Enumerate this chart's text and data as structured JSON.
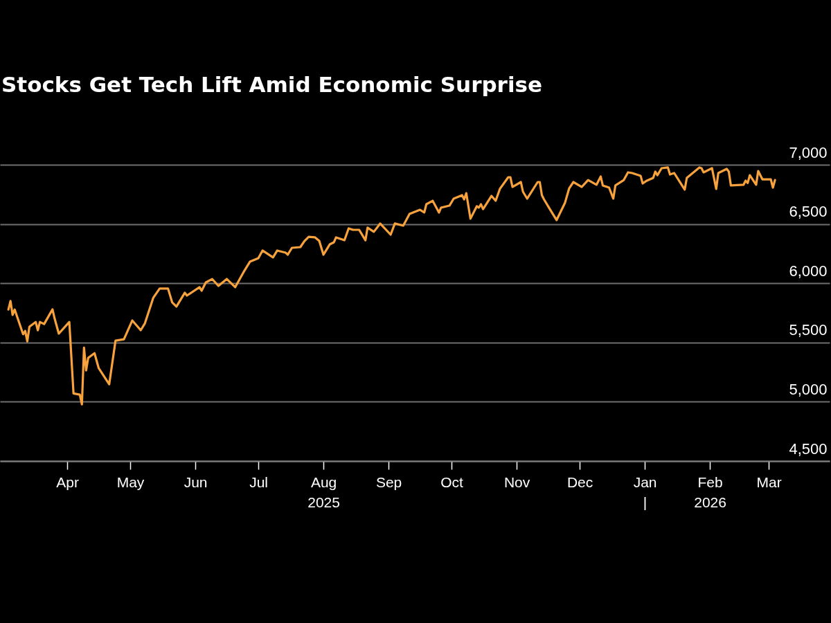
{
  "chart_data": {
    "type": "line",
    "title": "Stocks Get Tech Lift Amid Economic Surprise",
    "x": [
      "2025-03-04",
      "2025-03-05",
      "2025-03-06",
      "2025-03-07",
      "2025-03-11",
      "2025-03-12",
      "2025-03-13",
      "2025-03-14",
      "2025-03-17",
      "2025-03-18",
      "2025-03-19",
      "2025-03-21",
      "2025-03-25",
      "2025-03-26",
      "2025-03-28",
      "2025-04-02",
      "2025-04-04",
      "2025-04-07",
      "2025-04-08",
      "2025-04-09",
      "2025-04-10",
      "2025-04-11",
      "2025-04-14",
      "2025-04-16",
      "2025-04-21",
      "2025-04-24",
      "2025-04-28",
      "2025-05-02",
      "2025-05-06",
      "2025-05-08",
      "2025-05-12",
      "2025-05-15",
      "2025-05-19",
      "2025-05-21",
      "2025-05-23",
      "2025-05-27",
      "2025-05-28",
      "2025-06-03",
      "2025-06-04",
      "2025-06-06",
      "2025-06-09",
      "2025-06-12",
      "2025-06-16",
      "2025-06-20",
      "2025-06-24",
      "2025-06-27",
      "2025-07-01",
      "2025-07-03",
      "2025-07-08",
      "2025-07-10",
      "2025-07-14",
      "2025-07-15",
      "2025-07-17",
      "2025-07-21",
      "2025-07-23",
      "2025-07-25",
      "2025-07-28",
      "2025-07-30",
      "2025-08-01",
      "2025-08-04",
      "2025-08-06",
      "2025-08-07",
      "2025-08-11",
      "2025-08-13",
      "2025-08-15",
      "2025-08-18",
      "2025-08-21",
      "2025-08-22",
      "2025-08-25",
      "2025-08-28",
      "2025-09-02",
      "2025-09-04",
      "2025-09-08",
      "2025-09-11",
      "2025-09-16",
      "2025-09-18",
      "2025-09-19",
      "2025-09-22",
      "2025-09-25",
      "2025-09-26",
      "2025-09-30",
      "2025-10-02",
      "2025-10-06",
      "2025-10-07",
      "2025-10-08",
      "2025-10-10",
      "2025-10-13",
      "2025-10-14",
      "2025-10-15",
      "2025-10-16",
      "2025-10-20",
      "2025-10-22",
      "2025-10-24",
      "2025-10-28",
      "2025-10-29",
      "2025-10-30",
      "2025-11-03",
      "2025-11-04",
      "2025-11-06",
      "2025-11-11",
      "2025-11-12",
      "2025-11-13",
      "2025-11-14",
      "2025-11-17",
      "2025-11-20",
      "2025-11-24",
      "2025-11-26",
      "2025-11-28",
      "2025-12-02",
      "2025-12-05",
      "2025-12-09",
      "2025-12-11",
      "2025-12-12",
      "2025-12-15",
      "2025-12-17",
      "2025-12-18",
      "2025-12-22",
      "2025-12-24",
      "2025-12-26",
      "2025-12-30",
      "2025-12-31",
      "2026-01-02",
      "2026-01-05",
      "2026-01-06",
      "2026-01-07",
      "2026-01-09",
      "2026-01-12",
      "2026-01-13",
      "2026-01-15",
      "2026-01-20",
      "2026-01-21",
      "2026-01-23",
      "2026-01-27",
      "2026-01-28",
      "2026-01-29",
      "2026-02-02",
      "2026-02-04",
      "2026-02-05",
      "2026-02-09",
      "2026-02-10",
      "2026-02-11",
      "2026-02-17",
      "2026-02-18",
      "2026-02-19",
      "2026-02-20",
      "2026-02-23",
      "2026-02-24",
      "2026-02-26",
      "2026-03-02",
      "2026-03-03",
      "2026-03-04"
    ],
    "series": [
      {
        "color": "#f7a23c",
        "values": [
          5778,
          5850,
          5733,
          5778,
          5570,
          5598,
          5510,
          5633,
          5673,
          5604,
          5673,
          5656,
          5780,
          5703,
          5575,
          5673,
          5070,
          5060,
          4978,
          5457,
          5265,
          5370,
          5410,
          5283,
          5148,
          5516,
          5527,
          5686,
          5604,
          5662,
          5878,
          5955,
          5955,
          5838,
          5803,
          5920,
          5896,
          5967,
          5937,
          6007,
          6036,
          5978,
          6036,
          5967,
          6095,
          6182,
          6212,
          6276,
          6218,
          6276,
          6258,
          6241,
          6299,
          6305,
          6357,
          6392,
          6387,
          6357,
          6241,
          6328,
          6346,
          6387,
          6363,
          6463,
          6451,
          6451,
          6363,
          6469,
          6434,
          6504,
          6410,
          6504,
          6486,
          6585,
          6620,
          6597,
          6667,
          6696,
          6597,
          6638,
          6655,
          6714,
          6743,
          6708,
          6760,
          6545,
          6650,
          6638,
          6667,
          6626,
          6737,
          6696,
          6796,
          6895,
          6895,
          6813,
          6854,
          6772,
          6714,
          6854,
          6854,
          6743,
          6708,
          6620,
          6533,
          6679,
          6801,
          6854,
          6813,
          6871,
          6831,
          6901,
          6825,
          6807,
          6714,
          6825,
          6871,
          6936,
          6930,
          6907,
          6842,
          6866,
          6889,
          6942,
          6912,
          6971,
          6977,
          6918,
          6930,
          6790,
          6889,
          6918,
          6977,
          6971,
          6936,
          6971,
          6796,
          6930,
          6965,
          6942,
          6825,
          6831,
          6866,
          6846,
          6912,
          6831,
          6947,
          6877,
          6877,
          6807,
          6871
        ]
      }
    ],
    "xlim": [
      "2025-02-28",
      "2026-03-30"
    ],
    "xticks": [
      {
        "value": "2025-04-01",
        "label": "Apr"
      },
      {
        "value": "2025-05-01",
        "label": "May"
      },
      {
        "value": "2025-06-01",
        "label": "Jun"
      },
      {
        "value": "2025-07-01",
        "label": "Jul"
      },
      {
        "value": "2025-08-01",
        "label": "Aug\n2025"
      },
      {
        "value": "2025-09-01",
        "label": "Sep"
      },
      {
        "value": "2025-10-01",
        "label": "Oct"
      },
      {
        "value": "2025-11-01",
        "label": "Nov"
      },
      {
        "value": "2025-12-01",
        "label": "Dec"
      },
      {
        "value": "2026-01-01",
        "label": "Jan\n|"
      },
      {
        "value": "2026-02-01",
        "label": "Feb\n2026"
      },
      {
        "value": "2026-03-01",
        "label": "Mar"
      }
    ],
    "ylim": [
      4500,
      7000
    ],
    "yticks": [
      {
        "value": 4500,
        "label": "4,500"
      },
      {
        "value": 5000,
        "label": "5,000"
      },
      {
        "value": 5500,
        "label": "5,500"
      },
      {
        "value": 6000,
        "label": "6,000"
      },
      {
        "value": 6500,
        "label": "6,500"
      },
      {
        "value": 7000,
        "label": "7,000"
      }
    ],
    "grid": "y"
  }
}
